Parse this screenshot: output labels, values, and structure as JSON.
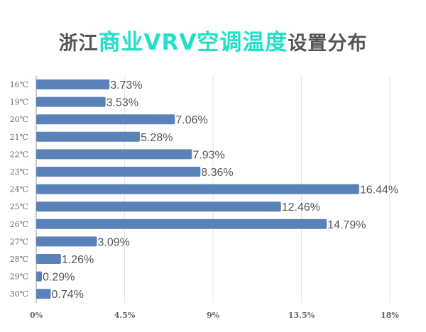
{
  "title": {
    "part1": "浙江",
    "part2": "商业VRV空调温度",
    "part3": "设置分布"
  },
  "colors": {
    "bar": "#5b82b8",
    "title_accent": "#22e0c8",
    "title_gray": "#555555"
  },
  "chart_data": {
    "type": "bar",
    "orientation": "horizontal",
    "title": "浙江商业VRV空调温度设置分布",
    "categories": [
      "16℃",
      "19℃",
      "20℃",
      "21℃",
      "22℃",
      "23℃",
      "24℃",
      "25℃",
      "26℃",
      "27℃",
      "28℃",
      "29℃",
      "30℃"
    ],
    "values": [
      3.73,
      3.53,
      7.06,
      5.28,
      7.93,
      8.36,
      16.44,
      12.46,
      14.79,
      3.09,
      1.26,
      0.29,
      0.74
    ],
    "data_labels": [
      "3.73%",
      "3.53%",
      "7.06%",
      "5.28%",
      "7.93%",
      "8.36%",
      "16.44%",
      "12.46%",
      "14.79%",
      "3.09%",
      "1.26%",
      "0.29%",
      "0.74%"
    ],
    "xlim": [
      0,
      18
    ],
    "xticks": [
      0,
      4.5,
      9,
      13.5,
      18
    ],
    "xtick_labels": [
      "0%",
      "4.5%",
      "9%",
      "13.5%",
      "18%"
    ],
    "grid": true,
    "xlabel": "",
    "ylabel": ""
  }
}
